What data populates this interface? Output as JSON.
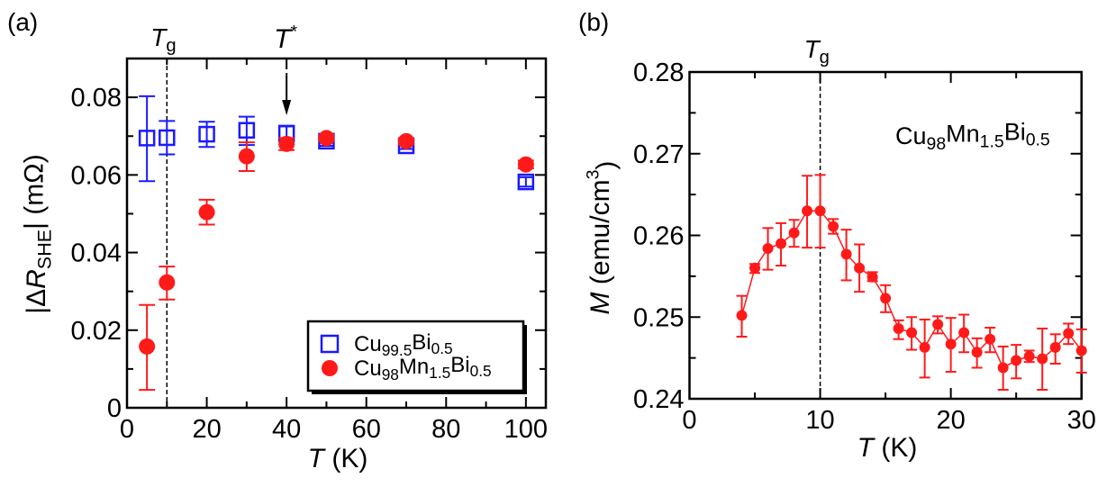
{
  "chart_data": [
    {
      "panel_label": "(a)",
      "type": "scatter",
      "xlabel": [
        {
          "t": "T",
          "i": true
        },
        {
          "t": " (K)"
        }
      ],
      "ylabel": [
        {
          "t": "|Δ"
        },
        {
          "t": "R",
          "i": true
        },
        {
          "t": "SHE",
          "sub": true
        },
        {
          "t": "| (mΩ)"
        }
      ],
      "xlim": [
        0,
        105
      ],
      "ylim": [
        0,
        0.09
      ],
      "xticks": [
        0,
        20,
        40,
        60,
        80,
        100
      ],
      "xtick_labels": [
        "0",
        "20",
        "40",
        "60",
        "80",
        "100"
      ],
      "xminor": 10,
      "yticks": [
        0,
        0.02,
        0.04,
        0.06,
        0.08
      ],
      "ytick_labels": [
        "0",
        "0.02",
        "0.04",
        "0.06",
        "0.08"
      ],
      "yminor": 0.01,
      "grid": false,
      "legend_placement": "bottom-right",
      "annotations": [
        {
          "label": [
            {
              "t": "T",
              "i": true
            },
            {
              "t": "g",
              "sub": true
            }
          ],
          "x": 10,
          "style": "dashed-vertical-line"
        },
        {
          "label": [
            {
              "t": "T",
              "i": true
            },
            {
              "t": "*",
              "sup": true
            }
          ],
          "x": 40,
          "style": "down-arrow"
        }
      ],
      "series": [
        {
          "name": [
            {
              "t": "Cu"
            },
            {
              "t": "99.5",
              "sub": true
            },
            {
              "t": "Bi"
            },
            {
              "t": "0.5",
              "sub": true
            }
          ],
          "marker": "open-square",
          "color": "#1a1aff",
          "x": [
            5,
            10,
            20,
            30,
            40,
            50,
            70,
            100
          ],
          "y": [
            0.0695,
            0.0696,
            0.0705,
            0.0715,
            0.0707,
            0.0687,
            0.0675,
            0.0582
          ],
          "yerr_low": [
            0.0584,
            0.0653,
            0.0672,
            0.0677,
            0.0687,
            0.0675,
            0.0667,
            0.057
          ],
          "yerr_high": [
            0.0803,
            0.0739,
            0.0737,
            0.075,
            0.0727,
            0.0699,
            0.0683,
            0.0594
          ]
        },
        {
          "name": [
            {
              "t": "Cu"
            },
            {
              "t": "98",
              "sub": true
            },
            {
              "t": "Mn"
            },
            {
              "t": "1.5",
              "sub": true
            },
            {
              "t": "Bi"
            },
            {
              "t": "0.5",
              "sub": true
            }
          ],
          "marker": "filled-circle",
          "color": "#ff1a1a",
          "x": [
            5,
            10,
            20,
            30,
            40,
            50,
            70,
            100
          ],
          "y": [
            0.0158,
            0.0323,
            0.0504,
            0.0648,
            0.068,
            0.0695,
            0.0687,
            0.0627
          ],
          "yerr_low": [
            0.0046,
            0.0279,
            0.0472,
            0.061,
            0.0664,
            0.0687,
            0.0679,
            0.0617
          ],
          "yerr_high": [
            0.0265,
            0.0364,
            0.0536,
            0.0684,
            0.0695,
            0.0703,
            0.0695,
            0.0637
          ]
        }
      ]
    },
    {
      "panel_label": "(b)",
      "type": "line",
      "xlabel": [
        {
          "t": "T",
          "i": true
        },
        {
          "t": " (K)"
        }
      ],
      "ylabel": [
        {
          "t": "M",
          "i": true
        },
        {
          "t": " (emu/cm"
        },
        {
          "t": "3",
          "sup": true
        },
        {
          "t": ")"
        }
      ],
      "xlim": [
        0,
        30
      ],
      "ylim": [
        0.24,
        0.28
      ],
      "xticks": [
        0,
        10,
        20,
        30
      ],
      "xtick_labels": [
        "0",
        "10",
        "20",
        "30"
      ],
      "xminor": 5,
      "yticks": [
        0.24,
        0.25,
        0.26,
        0.27,
        0.28
      ],
      "ytick_labels": [
        "0.24",
        "0.25",
        "0.26",
        "0.27",
        "0.28"
      ],
      "yminor": 0.005,
      "grid": false,
      "text_label": [
        {
          "t": "Cu"
        },
        {
          "t": "98",
          "sub": true
        },
        {
          "t": "Mn"
        },
        {
          "t": "1.5",
          "sub": true
        },
        {
          "t": "Bi"
        },
        {
          "t": "0.5",
          "sub": true
        }
      ],
      "annotations": [
        {
          "label": [
            {
              "t": "T",
              "i": true
            },
            {
              "t": "g",
              "sub": true
            }
          ],
          "x": 10,
          "style": "dashed-vertical-line"
        }
      ],
      "series": [
        {
          "marker": "filled-circle-line",
          "color": "#ff1a1a",
          "x": [
            4,
            5,
            6,
            7,
            8,
            9,
            10,
            11,
            12,
            13,
            14,
            15,
            16,
            17,
            18,
            19,
            20,
            21,
            22,
            23,
            24,
            25,
            26,
            27,
            28,
            29,
            30
          ],
          "y": [
            0.2502,
            0.256,
            0.2584,
            0.259,
            0.2603,
            0.263,
            0.263,
            0.2611,
            0.2577,
            0.256,
            0.2549,
            0.2523,
            0.2486,
            0.2481,
            0.2463,
            0.2491,
            0.2467,
            0.2481,
            0.2457,
            0.2473,
            0.2438,
            0.2447,
            0.2452,
            0.2449,
            0.2463,
            0.248,
            0.2459
          ],
          "yerr_low": [
            0.2476,
            0.2554,
            0.2558,
            0.2563,
            0.2586,
            0.2585,
            0.2585,
            0.2602,
            0.2545,
            0.2531,
            0.2544,
            0.2506,
            0.2473,
            0.246,
            0.2426,
            0.248,
            0.2433,
            0.2457,
            0.2438,
            0.2457,
            0.2411,
            0.2425,
            0.2445,
            0.2411,
            0.2443,
            0.2467,
            0.2432
          ],
          "yerr_high": [
            0.2526,
            0.2565,
            0.2609,
            0.2615,
            0.2619,
            0.2673,
            0.2674,
            0.262,
            0.2607,
            0.2589,
            0.2555,
            0.2539,
            0.2496,
            0.25,
            0.2497,
            0.2501,
            0.2499,
            0.2503,
            0.2474,
            0.2487,
            0.2464,
            0.2466,
            0.2459,
            0.2486,
            0.2479,
            0.2492,
            0.2485
          ]
        }
      ]
    }
  ]
}
